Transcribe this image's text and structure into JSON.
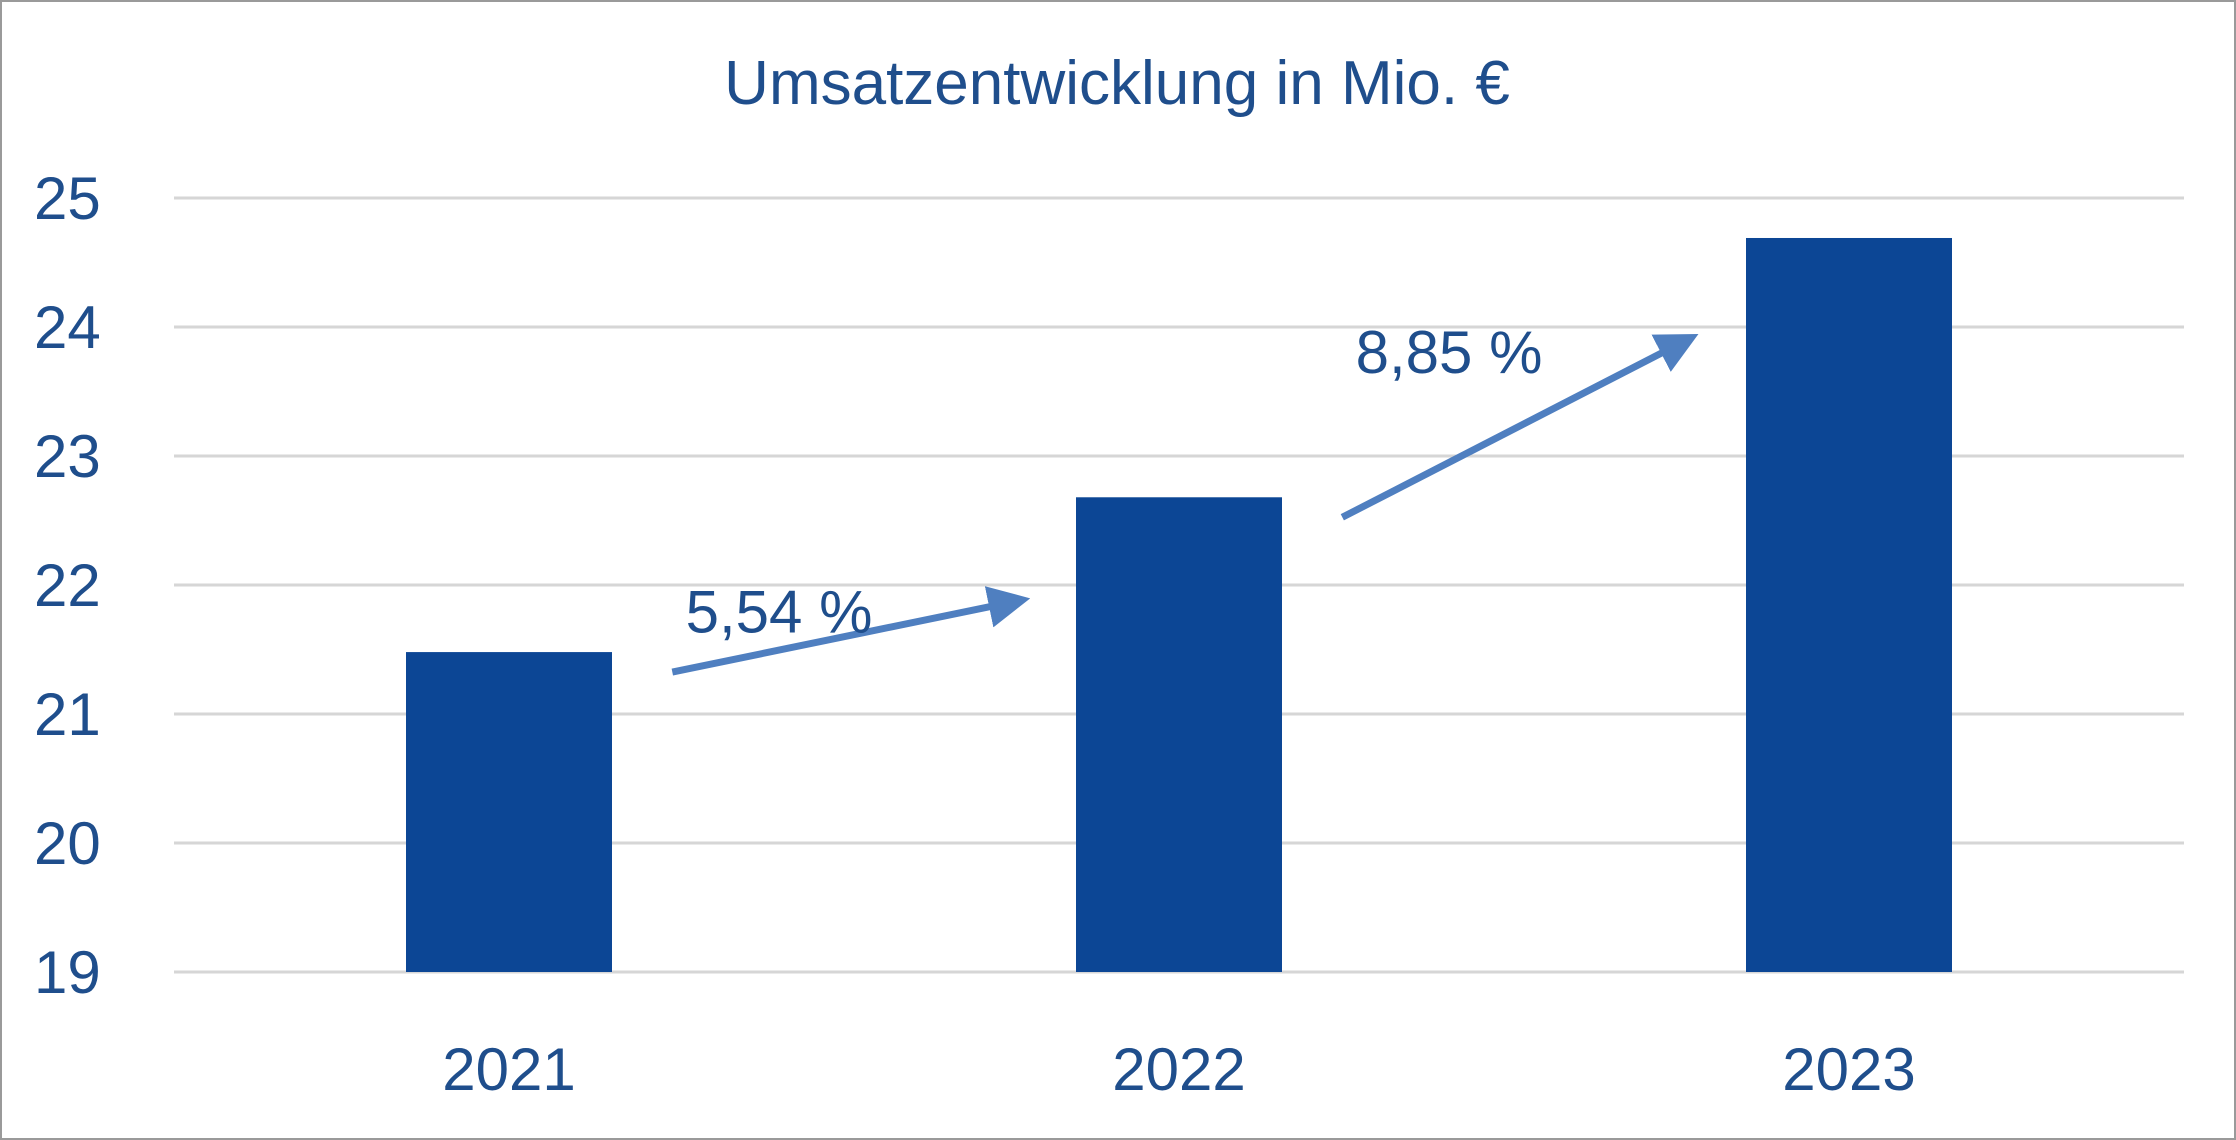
{
  "colors": {
    "bar": "#0c4695",
    "text": "#1f4e8c",
    "arrow": "#4f7fc0",
    "grid": "#d6d6d6",
    "border": "#9a9a9a"
  },
  "chart_data": {
    "type": "bar",
    "title": "Umsatzentwicklung in Mio. €",
    "xlabel": "",
    "ylabel": "",
    "categories": [
      "2021",
      "2022",
      "2023"
    ],
    "values": [
      21.48,
      22.68,
      24.69
    ],
    "ylim": [
      19,
      25
    ],
    "yticks": [
      19,
      20,
      21,
      22,
      23,
      24,
      25
    ],
    "ytick_labels": [
      "19",
      "20",
      "21",
      "22",
      "23",
      "24",
      "25"
    ],
    "grid": true,
    "legend": "none",
    "annotations": [
      {
        "text": "5,54 %",
        "from": "2021",
        "to": "2022"
      },
      {
        "text": "8,85 %",
        "from": "2022",
        "to": "2023"
      }
    ]
  }
}
